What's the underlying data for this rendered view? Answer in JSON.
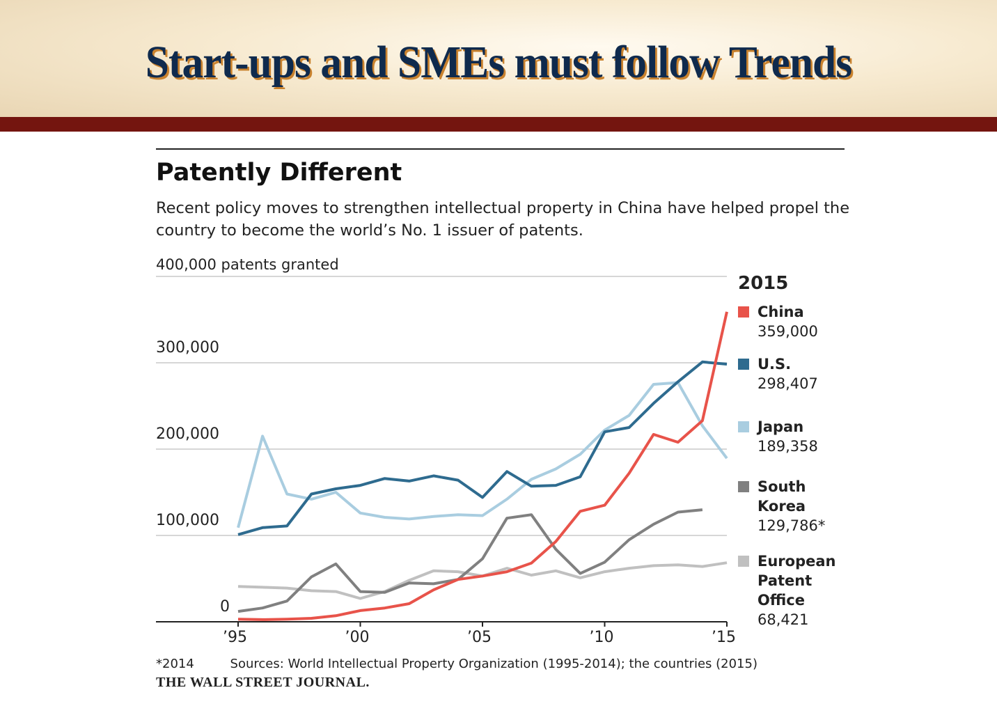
{
  "slide": {
    "title": "Start-ups and SMEs must follow Trends"
  },
  "chart_data": {
    "type": "line",
    "title": "Patently Different",
    "subtitle": "Recent policy moves to strengthen intellectual property in China have helped propel the country to become the world’s No. 1 issuer of patents.",
    "ylabel": "400,000 patents granted",
    "ylim": [
      0,
      400000
    ],
    "yticks": [
      0,
      100000,
      200000,
      300000,
      400000
    ],
    "ytick_labels": [
      "0",
      "100,000",
      "200,000",
      "300,000"
    ],
    "xlim": [
      1995,
      2015
    ],
    "xticks": [
      1995,
      2000,
      2005,
      2010,
      2015
    ],
    "xtick_labels": [
      "’95",
      "’00",
      "’05",
      "’10",
      "’15"
    ],
    "x": [
      1995,
      1996,
      1997,
      1998,
      1999,
      2000,
      2001,
      2002,
      2003,
      2004,
      2005,
      2006,
      2007,
      2008,
      2009,
      2010,
      2011,
      2012,
      2013,
      2014,
      2015
    ],
    "legend_title": "2015",
    "series": [
      {
        "name": "China",
        "label_value": "359,000",
        "color": "#e8534a",
        "values": [
          3000,
          2500,
          3000,
          4000,
          7000,
          13000,
          16000,
          21000,
          37000,
          49000,
          53000,
          58000,
          68000,
          93000,
          128000,
          135000,
          172000,
          217000,
          208000,
          233000,
          359000
        ]
      },
      {
        "name": "U.S.",
        "label_value": "298,407",
        "color": "#2e6b8f",
        "values": [
          101000,
          109000,
          111000,
          148000,
          154000,
          158000,
          166000,
          163000,
          169000,
          164000,
          144000,
          174000,
          157000,
          158000,
          168000,
          220000,
          225000,
          253000,
          278000,
          301000,
          298407
        ]
      },
      {
        "name": "Japan",
        "label_value": "189,358",
        "color": "#a9cde0",
        "values": [
          109000,
          215000,
          148000,
          142000,
          150000,
          126000,
          121000,
          119000,
          122000,
          124000,
          123000,
          142000,
          165000,
          177000,
          194000,
          222000,
          239000,
          275000,
          277000,
          227000,
          189358
        ]
      },
      {
        "name": "South Korea",
        "label_lines": [
          "South",
          "Korea"
        ],
        "label_value": "129,786*",
        "color": "#808080",
        "values": [
          12000,
          16000,
          24000,
          52000,
          67000,
          35000,
          34000,
          45000,
          44000,
          49000,
          73000,
          120000,
          124000,
          84000,
          56000,
          69000,
          95000,
          113000,
          127000,
          129786,
          null
        ]
      },
      {
        "name": "European Patent Office",
        "label_lines": [
          "European",
          "Patent",
          "Office"
        ],
        "label_value": "68,421",
        "color": "#c0c0c0",
        "values": [
          41000,
          40000,
          39000,
          36000,
          35000,
          27000,
          35000,
          48000,
          59000,
          58000,
          53000,
          62000,
          54000,
          59000,
          51000,
          58000,
          62000,
          65000,
          66000,
          64000,
          68421
        ]
      }
    ],
    "footnote": "*2014",
    "sources": "Sources: World Intellectual Property Organization (1995-2014); the countries (2015)",
    "publisher": "THE WALL STREET JOURNAL."
  }
}
